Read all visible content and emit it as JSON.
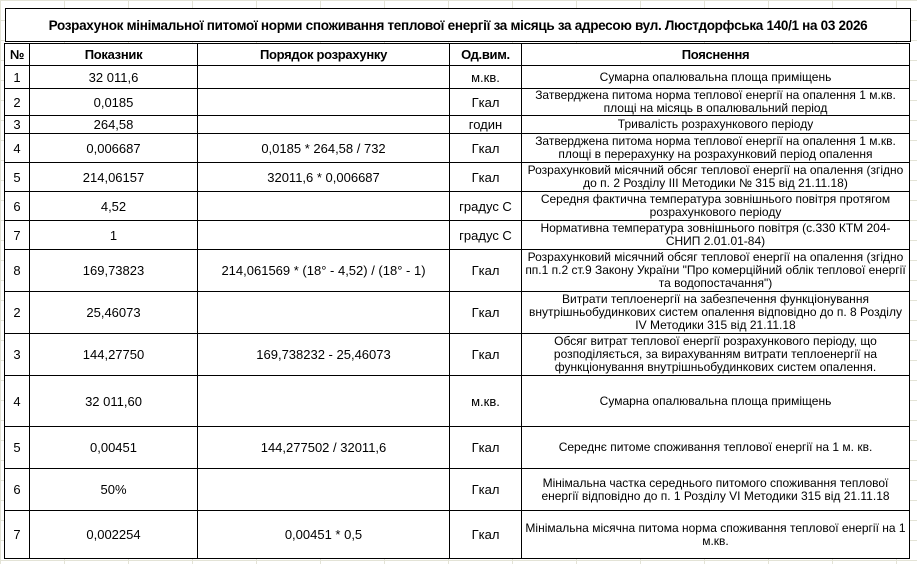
{
  "title": "Розрахунок мінімальної питомої норми споживання теплової енергії за місяць за адресою вул. Люстдорфська 140/1 на 03 2026",
  "headers": [
    "№",
    "Показник",
    "Порядок розрахунку",
    "Од.вим.",
    "Пояснення"
  ],
  "rows": [
    {
      "num": "1",
      "value": "32 011,6",
      "formula": "",
      "unit": "м.кв.",
      "note": "Сумарна опалювальна площа приміщень"
    },
    {
      "num": "2",
      "value": "0,0185",
      "formula": "",
      "unit": "Гкал",
      "note": "Затверджена питома норма теплової енергії на опалення 1 м.кв. площі на місяць в опалювальний період"
    },
    {
      "num": "3",
      "value": "264,58",
      "formula": "",
      "unit": "годин",
      "note": "Тривалість розрахункового періоду"
    },
    {
      "num": "4",
      "value": "0,006687",
      "formula": "0,0185 * 264,58 / 732",
      "unit": "Гкал",
      "note": "Затверджена питома норма теплової енергії на опалення 1 м.кв. площі в перерахунку на розрахунковий період опалення"
    },
    {
      "num": "5",
      "value": "214,06157",
      "formula": "32011,6 * 0,006687",
      "unit": "Гкал",
      "note": "Розрахунковий місячний обсяг теплової енергії на опалення (згідно до п. 2 Розділу ІІІ Методики № 315 від 21.11.18)"
    },
    {
      "num": "6",
      "value": "4,52",
      "formula": "",
      "unit": "градус С",
      "note": "Середня фактична температура зовнішнього повітря протягом розрахункового періоду"
    },
    {
      "num": "7",
      "value": "1",
      "formula": "",
      "unit": "градус С",
      "note": "Нормативна температура зовнішнього повітря (с.330 КТМ 204-СНИП 2.01.01-84)"
    },
    {
      "num": "8",
      "value": "169,73823",
      "formula": "214,061569 * (18° - 4,52) / (18° - 1)",
      "unit": "Гкал",
      "note": "Розрахунковий місячний обсяг теплової енергії на опалення (згідно пп.1 п.2 ст.9 Закону України \"Про комерційний облік теплової енергії та водопостачання\")"
    },
    {
      "num": "2",
      "value": "25,46073",
      "formula": "",
      "unit": "Гкал",
      "note": "Витрати теплоенергії на забезпечення функціонування внутрішньобудинкових систем опалення відповідно до п. 8 Розділу IV Методики 315 від 21.11.18"
    },
    {
      "num": "3",
      "value": "144,27750",
      "formula": "169,738232 - 25,46073",
      "unit": "Гкал",
      "note": "Обсяг витрат теплової енергії розрахункового періоду, що розподіляється, за вирахуванням витрати теплоенергії на функціонування внутрішньобудинкових систем опалення."
    },
    {
      "num": "4",
      "value": "32 011,60",
      "formula": "",
      "unit": "м.кв.",
      "note": "Сумарна опалювальна площа приміщень"
    },
    {
      "num": "5",
      "value": "0,00451",
      "formula": "144,277502 / 32011,6",
      "unit": "Гкал",
      "note": "Середнє питоме споживання теплової енергії на 1 м. кв."
    },
    {
      "num": "6",
      "value": "50%",
      "formula": "",
      "unit": "Гкал",
      "note": "Мінімальна частка середнього питомого споживання теплової енергії відповідно до п. 1 Розділу VI Методики 315 від 21.11.18"
    },
    {
      "num": "7",
      "value": "0,002254",
      "formula": "0,00451 * 0,5",
      "unit": "Гкал",
      "note": "Мінімальна місячна питома норма споживання теплової енергії на 1 м.кв."
    }
  ]
}
